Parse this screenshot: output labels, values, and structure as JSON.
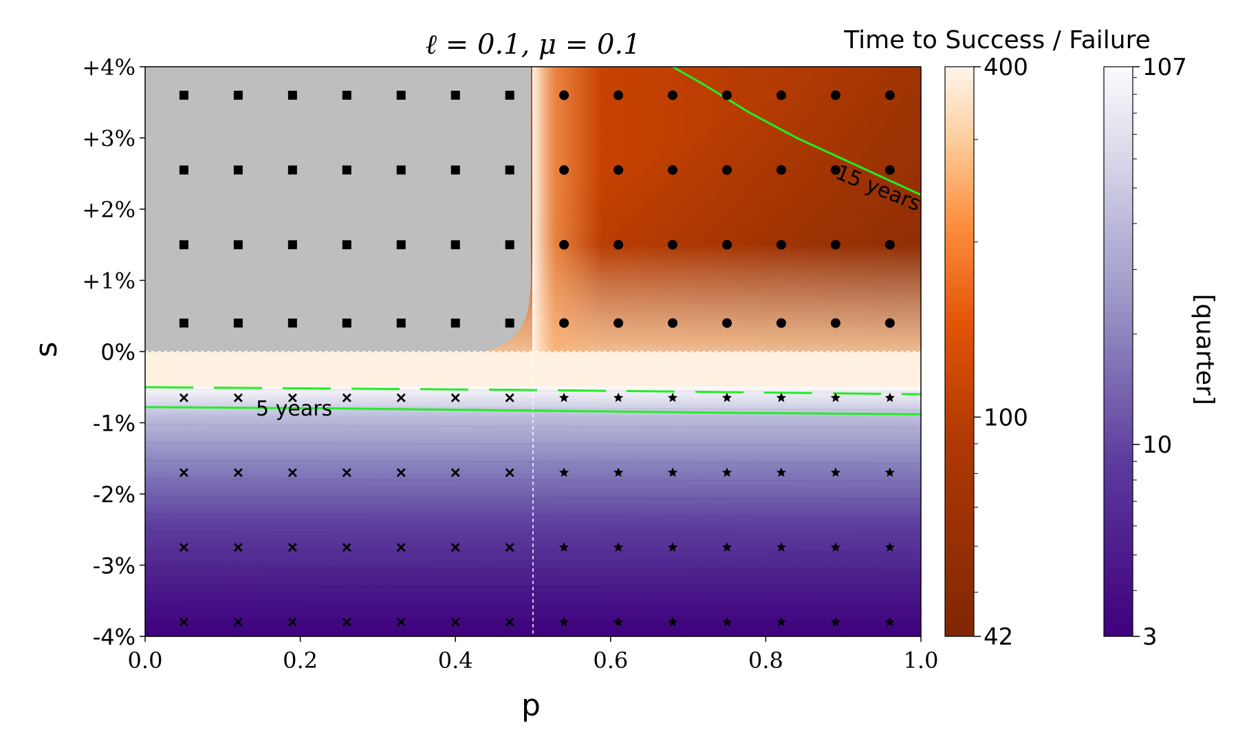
{
  "chart_data": {
    "type": "heatmap",
    "title": "ℓ = 0.1, μ = 0.1",
    "xlabel": "p",
    "ylabel": "s",
    "xlim": [
      0.0,
      1.0
    ],
    "ylim": [
      -4,
      4
    ],
    "x_ticks": [
      {
        "value": 0.0,
        "label": "0.0"
      },
      {
        "value": 0.2,
        "label": "0.2"
      },
      {
        "value": 0.4,
        "label": "0.4"
      },
      {
        "value": 0.6,
        "label": "0.6"
      },
      {
        "value": 0.8,
        "label": "0.8"
      },
      {
        "value": 1.0,
        "label": "1.0"
      }
    ],
    "y_ticks": [
      {
        "value": 4,
        "label": "+4%"
      },
      {
        "value": 3,
        "label": "+3%"
      },
      {
        "value": 2,
        "label": "+2%"
      },
      {
        "value": 1,
        "label": "+1%"
      },
      {
        "value": 0,
        "label": "0%"
      },
      {
        "value": -1,
        "label": "-1%"
      },
      {
        "value": -2,
        "label": "-2%"
      },
      {
        "value": -3,
        "label": "-3%"
      },
      {
        "value": -4,
        "label": "-4%"
      }
    ],
    "reference_lines": {
      "p": 0.5,
      "s": 0
    },
    "marker_grid": {
      "p": [
        0.05,
        0.12,
        0.19,
        0.26,
        0.33,
        0.4,
        0.47,
        0.54,
        0.61,
        0.68,
        0.75,
        0.82,
        0.89,
        0.96
      ],
      "s": [
        3.6,
        2.55,
        1.5,
        0.4,
        -0.65,
        -1.7,
        -2.75,
        -3.8
      ],
      "legend": {
        "square": "p < 0.5, s > 0",
        "circle": "p > 0.5, s > 0",
        "x": "p < 0.5, s < 0",
        "star": "p > 0.5, s < 0"
      }
    },
    "contours": [
      {
        "label": "15 years",
        "style": "solid",
        "points": [
          [
            0.68,
            4.0
          ],
          [
            0.72,
            3.75
          ],
          [
            0.78,
            3.35
          ],
          [
            0.84,
            3.0
          ],
          [
            0.9,
            2.7
          ],
          [
            0.96,
            2.4
          ],
          [
            1.0,
            2.2
          ]
        ]
      },
      {
        "label": "5 years",
        "style": "solid",
        "points": [
          [
            0.0,
            -0.78
          ],
          [
            0.25,
            -0.8
          ],
          [
            0.5,
            -0.83
          ],
          [
            0.75,
            -0.86
          ],
          [
            1.0,
            -0.88
          ]
        ]
      },
      {
        "label": "",
        "style": "dashed",
        "points": [
          [
            0.0,
            -0.5
          ],
          [
            0.25,
            -0.52
          ],
          [
            0.5,
            -0.54
          ],
          [
            0.75,
            -0.57
          ],
          [
            1.0,
            -0.6
          ]
        ]
      }
    ],
    "colorbars": [
      {
        "title": "Time to Success / Failure",
        "min": 42,
        "max": 400,
        "scale": "log",
        "colormap": "orange",
        "tick_labels": [
          {
            "value": 400,
            "label": "400"
          },
          {
            "value": 100,
            "label": "100"
          },
          {
            "value": 42,
            "label": "42"
          }
        ]
      },
      {
        "title": "",
        "ylabel": "[quarter]",
        "min": 3,
        "max": 107,
        "scale": "log",
        "colormap": "purple",
        "tick_labels": [
          {
            "value": 107,
            "label": "107"
          },
          {
            "value": 10,
            "label": "10"
          },
          {
            "value": 3,
            "label": "3"
          }
        ]
      }
    ],
    "colors": {
      "gray_region": "#bebebe",
      "contour": "#22ee22",
      "orange_dark": "#7f2704",
      "orange_mid": "#d94801",
      "orange_light": "#fdae6b",
      "orange_pale": "#fff5eb",
      "purple_dark": "#3f007d",
      "purple_mid": "#6a51a3",
      "purple_light": "#bcbddc",
      "purple_pale": "#fcfbfd"
    }
  }
}
